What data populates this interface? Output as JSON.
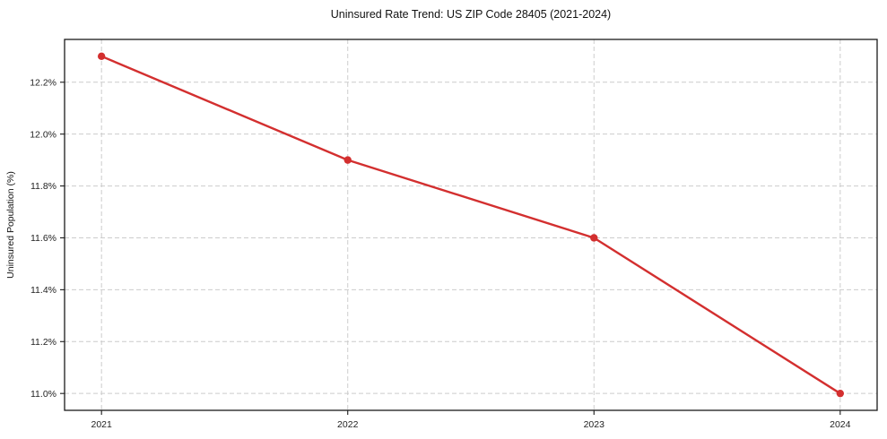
{
  "chart_data": {
    "type": "line",
    "title": "Uninsured Rate Trend: US ZIP Code 28405 (2021-2024)",
    "xlabel": "",
    "ylabel": "Uninsured Population (%)",
    "x": [
      2021,
      2022,
      2023,
      2024
    ],
    "values": [
      12.3,
      11.9,
      11.6,
      11.0
    ],
    "xlim": [
      2020.85,
      2024.15
    ],
    "ylim": [
      10.935,
      12.365
    ],
    "xticks": [
      2021,
      2022,
      2023,
      2024
    ],
    "xtick_labels": [
      "2021",
      "2022",
      "2023",
      "2024"
    ],
    "yticks": [
      11.0,
      11.2,
      11.4,
      11.6,
      11.8,
      12.0,
      12.2
    ],
    "ytick_labels": [
      "11.0%",
      "11.2%",
      "11.4%",
      "11.6%",
      "11.8%",
      "12.0%",
      "12.2%"
    ],
    "grid": true,
    "legend": "none",
    "line_color": "#d32f2f",
    "marker_color": "#d32f2f",
    "grid_color": "#cccccc",
    "axis_color": "#1a1a1a",
    "background_color": "#ffffff"
  }
}
